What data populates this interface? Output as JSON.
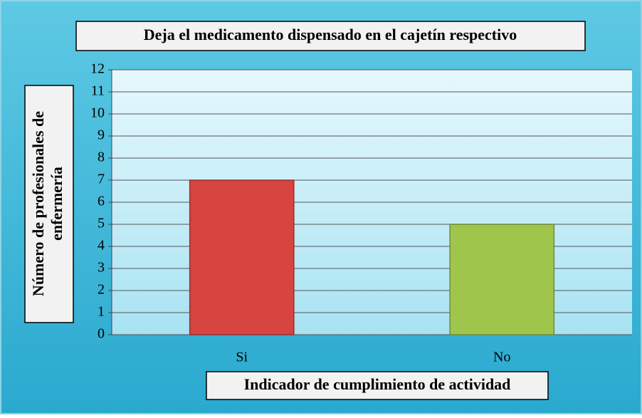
{
  "chart_data": {
    "type": "bar",
    "title": "Deja el medicamento dispensado en el cajetín respectivo",
    "xlabel": "Indicador de cumplimiento de actividad",
    "ylabel": [
      "Número de profesionales de",
      "enfermería"
    ],
    "categories": [
      "Si",
      "No"
    ],
    "values": [
      7,
      5
    ],
    "colors": [
      "#d8443f",
      "#a0c54d"
    ],
    "ylim": [
      0,
      12
    ],
    "yticks": [
      0,
      1,
      2,
      3,
      4,
      5,
      6,
      7,
      8,
      9,
      10,
      11,
      12
    ],
    "grid": true
  }
}
